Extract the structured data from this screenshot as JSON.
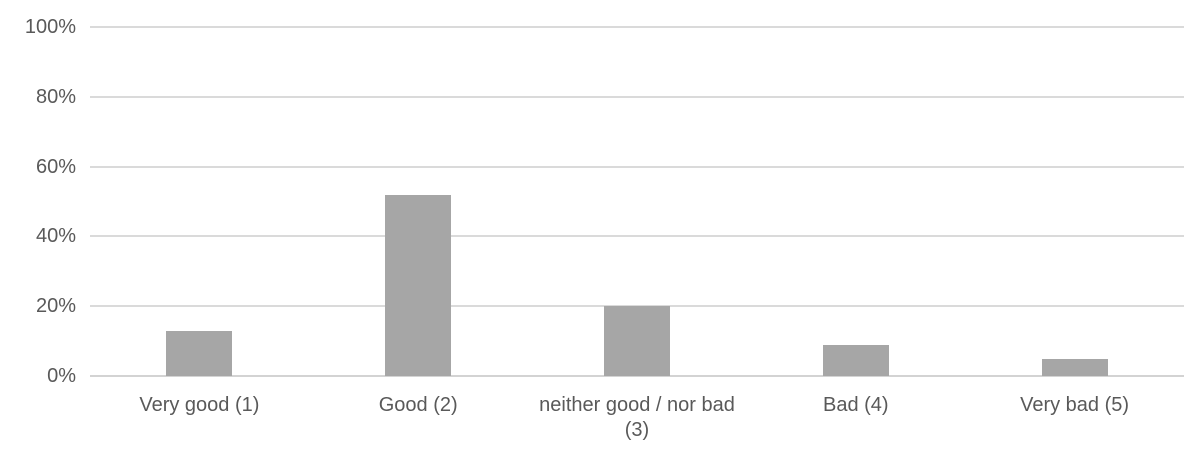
{
  "chart_data": {
    "type": "bar",
    "categories": [
      "Very good (1)",
      "Good (2)",
      "neither good / nor bad (3)",
      "Bad (4)",
      "Very bad (5)"
    ],
    "values": [
      13,
      52,
      20,
      9,
      5
    ],
    "title": "",
    "xlabel": "",
    "ylabel": "",
    "ylim": [
      0,
      100
    ],
    "ytick_values": [
      0,
      20,
      40,
      60,
      80,
      100
    ],
    "ytick_labels": [
      "0%",
      "20%",
      "40%",
      "60%",
      "80%",
      "100%"
    ],
    "grid": true,
    "legend": "none",
    "colors": {
      "bar": "#a6a6a6",
      "gridline": "#dadada",
      "axis_line": "#d3d3d3",
      "label_text": "#595959",
      "background": "#ffffff"
    }
  }
}
